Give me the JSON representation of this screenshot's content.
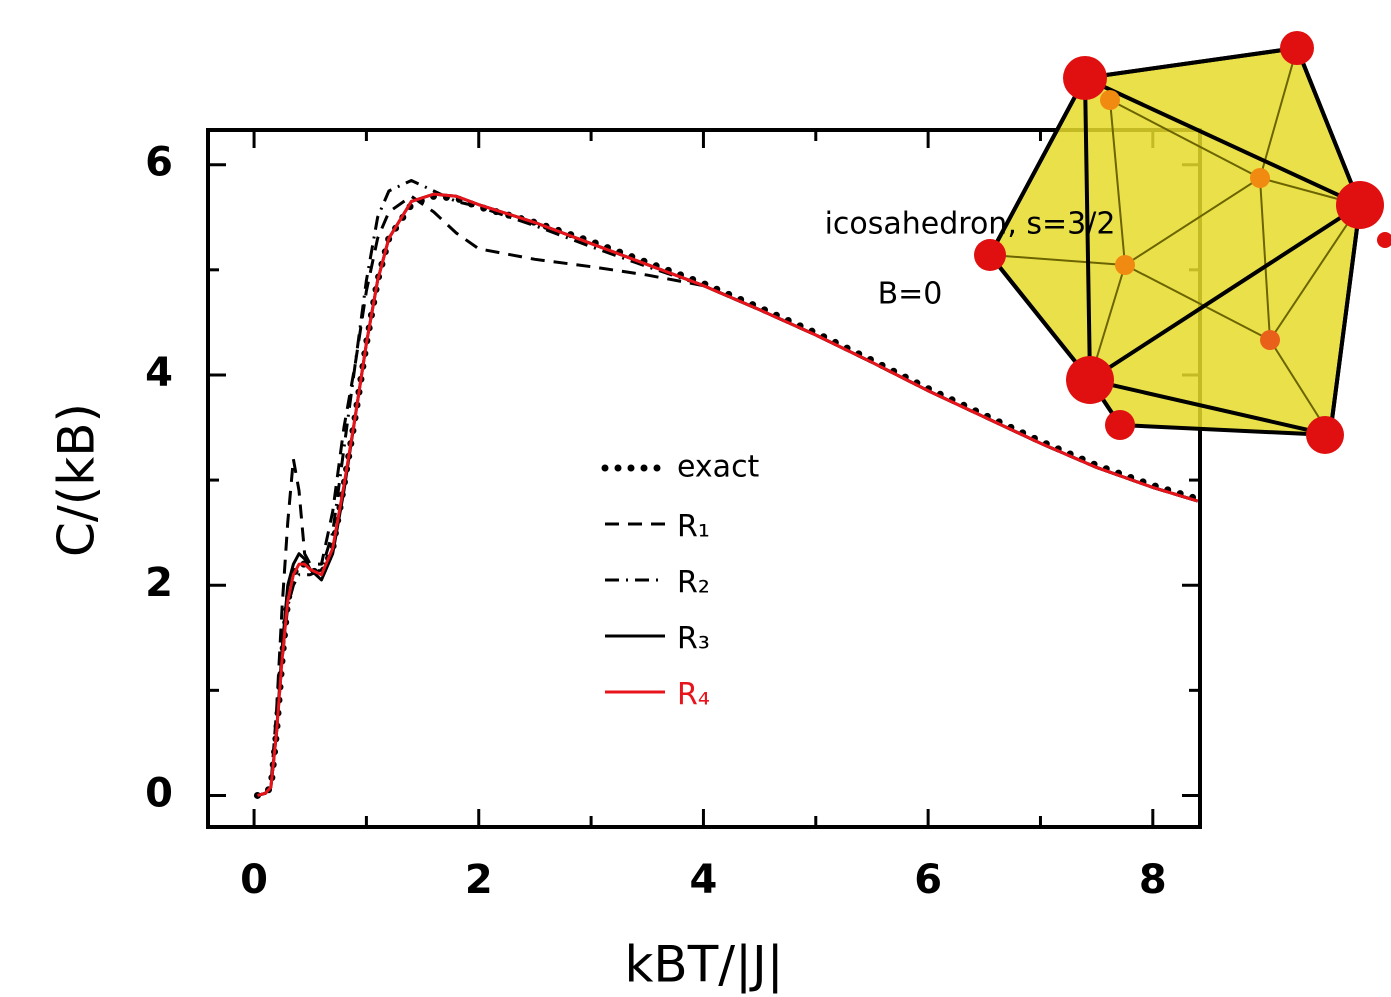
{
  "chart_data": {
    "type": "line",
    "x_label": "kBT/|J|",
    "y_label": "C/(kB)",
    "annotations": [
      "icosahedron, s=3/2",
      "B=0"
    ],
    "x": [
      0.03,
      0.1,
      0.15,
      0.2,
      0.25,
      0.3,
      0.35,
      0.4,
      0.45,
      0.5,
      0.6,
      0.7,
      0.8,
      0.9,
      1.0,
      1.1,
      1.2,
      1.4,
      1.6,
      1.8,
      2.0,
      2.5,
      3.0,
      3.5,
      4.0,
      4.5,
      5.0,
      5.5,
      6.0,
      6.5,
      7.0,
      7.5,
      8.0,
      8.4
    ],
    "series": [
      {
        "name": "exact",
        "color": "#000000",
        "dash": "dotted",
        "values": [
          0,
          0.02,
          0.08,
          0.6,
          1.3,
          1.85,
          2.1,
          2.2,
          2.2,
          2.15,
          2.1,
          2.35,
          2.95,
          3.6,
          4.3,
          4.9,
          5.3,
          5.62,
          5.7,
          5.68,
          5.6,
          5.45,
          5.27,
          5.07,
          4.87,
          4.64,
          4.4,
          4.14,
          3.87,
          3.62,
          3.37,
          3.14,
          2.95,
          2.82
        ]
      },
      {
        "name": "R₁",
        "color": "#000000",
        "dash": "dashed",
        "values": [
          0,
          0.02,
          0.1,
          0.8,
          1.8,
          2.6,
          3.2,
          2.9,
          2.3,
          2.2,
          2.2,
          2.7,
          3.5,
          4.1,
          4.8,
          5.3,
          5.55,
          5.7,
          5.55,
          5.35,
          5.2,
          5.1,
          5.03,
          4.95,
          4.85,
          4.62,
          4.38,
          4.12,
          3.85,
          3.6,
          3.35,
          3.12,
          2.93,
          2.8
        ]
      },
      {
        "name": "R₂",
        "color": "#000000",
        "dash": "dashdot",
        "values": [
          0,
          0.02,
          0.08,
          0.6,
          1.3,
          1.8,
          2.0,
          2.1,
          2.1,
          2.1,
          2.15,
          2.5,
          3.3,
          4.1,
          4.9,
          5.5,
          5.75,
          5.85,
          5.75,
          5.65,
          5.6,
          5.42,
          5.22,
          5.03,
          4.85,
          4.62,
          4.38,
          4.12,
          3.85,
          3.6,
          3.35,
          3.12,
          2.93,
          2.8
        ]
      },
      {
        "name": "R₃",
        "color": "#000000",
        "dash": "solid",
        "values": [
          0,
          0.02,
          0.08,
          0.6,
          1.4,
          2.0,
          2.2,
          2.3,
          2.25,
          2.15,
          2.05,
          2.3,
          2.9,
          3.6,
          4.3,
          4.9,
          5.3,
          5.65,
          5.72,
          5.7,
          5.62,
          5.45,
          5.25,
          5.05,
          4.85,
          4.62,
          4.38,
          4.12,
          3.85,
          3.6,
          3.35,
          3.12,
          2.93,
          2.8
        ]
      },
      {
        "name": "R₄",
        "color": "#e8141b",
        "dash": "solid",
        "values": [
          0,
          0.02,
          0.08,
          0.6,
          1.3,
          1.85,
          2.1,
          2.2,
          2.2,
          2.15,
          2.1,
          2.35,
          2.95,
          3.6,
          4.3,
          4.9,
          5.3,
          5.65,
          5.72,
          5.7,
          5.62,
          5.45,
          5.25,
          5.05,
          4.85,
          4.62,
          4.38,
          4.12,
          3.85,
          3.6,
          3.35,
          3.12,
          2.93,
          2.8
        ]
      }
    ],
    "xlim": [
      -0.41,
      8.42
    ],
    "ylim": [
      -0.3,
      6.33
    ],
    "xticks": [
      0,
      2,
      4,
      6,
      8
    ],
    "x_minor_ticks": [
      1,
      3,
      5,
      7
    ],
    "yticks": [
      0,
      2,
      4,
      6
    ],
    "y_minor_ticks": [
      1,
      3,
      5
    ],
    "grid": false
  }
}
